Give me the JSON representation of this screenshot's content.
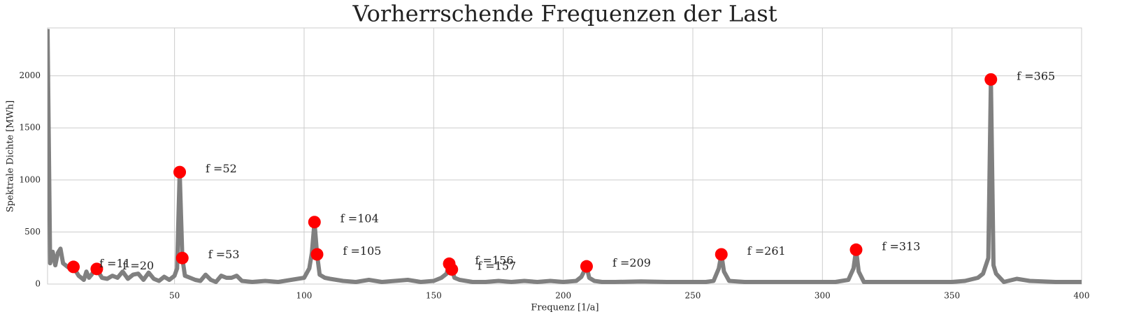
{
  "chart_data": {
    "type": "line",
    "title": "Vorherrschende Frequenzen der Last",
    "xlabel": "Frequenz [1/a]",
    "ylabel": "Spektrale Dichte [MWh]",
    "xlim": [
      1,
      400
    ],
    "ylim": [
      0,
      2460
    ],
    "xticks": [
      50,
      100,
      150,
      200,
      250,
      300,
      350,
      400
    ],
    "yticks": [
      0,
      500,
      1000,
      1500,
      2000
    ],
    "grid": true,
    "line": {
      "color": "#808080",
      "x": [
        1,
        2,
        3,
        4,
        5,
        6,
        7,
        8,
        9,
        10,
        11,
        12,
        13,
        14,
        15,
        16,
        17,
        18,
        19,
        20,
        22,
        24,
        26,
        28,
        30,
        32,
        34,
        36,
        38,
        40,
        42,
        44,
        46,
        48,
        50,
        51,
        52,
        53,
        54,
        56,
        58,
        60,
        62,
        64,
        66,
        68,
        70,
        72,
        74,
        76,
        80,
        85,
        90,
        95,
        100,
        102,
        103,
        104,
        105,
        106,
        108,
        110,
        115,
        120,
        125,
        130,
        135,
        140,
        145,
        150,
        153,
        155,
        156,
        157,
        158,
        160,
        165,
        170,
        175,
        180,
        185,
        190,
        195,
        200,
        205,
        207,
        209,
        210,
        212,
        215,
        220,
        230,
        240,
        250,
        255,
        258,
        260,
        261,
        262,
        264,
        270,
        280,
        290,
        300,
        305,
        310,
        312,
        313,
        314,
        316,
        320,
        330,
        340,
        350,
        355,
        360,
        362,
        364,
        365,
        366,
        367,
        370,
        375,
        380,
        390,
        400
      ],
      "y": [
        2450,
        200,
        310,
        180,
        300,
        340,
        200,
        180,
        160,
        165,
        165,
        120,
        80,
        60,
        40,
        120,
        60,
        90,
        130,
        145,
        60,
        50,
        80,
        60,
        120,
        50,
        90,
        100,
        40,
        110,
        50,
        30,
        70,
        40,
        80,
        150,
        1075,
        250,
        80,
        60,
        40,
        30,
        90,
        40,
        20,
        80,
        60,
        60,
        80,
        30,
        20,
        30,
        20,
        40,
        60,
        150,
        300,
        595,
        285,
        90,
        60,
        50,
        30,
        20,
        40,
        20,
        30,
        40,
        20,
        30,
        60,
        100,
        195,
        140,
        60,
        40,
        20,
        20,
        30,
        20,
        30,
        20,
        30,
        20,
        30,
        70,
        170,
        60,
        30,
        20,
        20,
        25,
        20,
        20,
        20,
        30,
        150,
        285,
        120,
        30,
        20,
        20,
        20,
        20,
        20,
        40,
        150,
        330,
        120,
        20,
        20,
        20,
        20,
        20,
        30,
        60,
        100,
        250,
        1965,
        180,
        100,
        20,
        50,
        30,
        20,
        20
      ]
    },
    "points": {
      "color": "#ff0000",
      "x": [
        11,
        20,
        52,
        53,
        104,
        105,
        156,
        157,
        209,
        261,
        313,
        365
      ],
      "y": [
        165,
        145,
        1075,
        250,
        595,
        285,
        195,
        140,
        170,
        285,
        330,
        1965
      ]
    },
    "annotations": [
      "f =11",
      "f =20",
      "f =52",
      "f =53",
      "f =104",
      "f =105",
      "f =156",
      "f =157",
      "f =209",
      "f =261",
      "f =313",
      "f =365"
    ]
  }
}
